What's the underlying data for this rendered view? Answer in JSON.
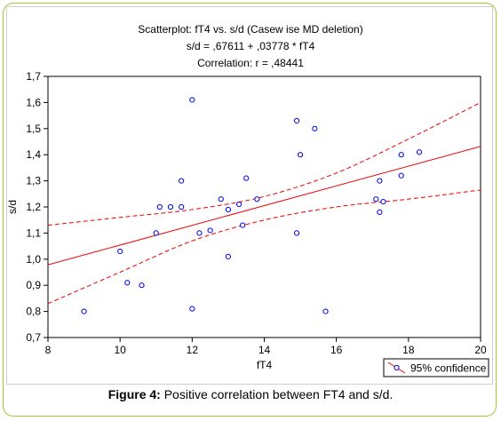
{
  "chart_data": {
    "type": "scatter",
    "title_lines": [
      "Scatterplot: fT4 vs. s/d (Casew ise MD deletion)",
      "s/d = ,67611 + ,03778 * fT4",
      "Correlation: r = ,48441"
    ],
    "xlabel": "fT4",
    "ylabel": "s/d",
    "xlim": [
      8,
      20
    ],
    "ylim": [
      0.7,
      1.7
    ],
    "x_ticks": [
      8,
      10,
      12,
      14,
      16,
      18,
      20
    ],
    "x_tick_labels": [
      "8",
      "10",
      "12",
      "14",
      "16",
      "18",
      "20"
    ],
    "y_ticks": [
      0.7,
      0.8,
      0.9,
      1.0,
      1.1,
      1.2,
      1.3,
      1.4,
      1.5,
      1.6,
      1.7
    ],
    "y_tick_labels": [
      "0,7",
      "0,8",
      "0,9",
      "1,0",
      "1,1",
      "1,2",
      "1,3",
      "1,4",
      "1,5",
      "1,6",
      "1,7"
    ],
    "grid": false,
    "legend": {
      "placement": "bottom-right",
      "label": "95% confidence"
    },
    "points": [
      {
        "x": 9.0,
        "y": 0.8
      },
      {
        "x": 10.0,
        "y": 1.03
      },
      {
        "x": 10.2,
        "y": 0.91
      },
      {
        "x": 10.6,
        "y": 0.9
      },
      {
        "x": 11.0,
        "y": 1.1
      },
      {
        "x": 11.1,
        "y": 1.2
      },
      {
        "x": 11.4,
        "y": 1.2
      },
      {
        "x": 11.7,
        "y": 1.3
      },
      {
        "x": 11.7,
        "y": 1.2
      },
      {
        "x": 12.0,
        "y": 1.61
      },
      {
        "x": 12.0,
        "y": 0.81
      },
      {
        "x": 12.2,
        "y": 1.1
      },
      {
        "x": 12.5,
        "y": 1.11
      },
      {
        "x": 12.8,
        "y": 1.23
      },
      {
        "x": 13.0,
        "y": 1.19
      },
      {
        "x": 13.0,
        "y": 1.01
      },
      {
        "x": 13.3,
        "y": 1.21
      },
      {
        "x": 13.4,
        "y": 1.13
      },
      {
        "x": 13.5,
        "y": 1.31
      },
      {
        "x": 13.8,
        "y": 1.23
      },
      {
        "x": 14.9,
        "y": 1.53
      },
      {
        "x": 14.9,
        "y": 1.1
      },
      {
        "x": 15.0,
        "y": 1.4
      },
      {
        "x": 15.4,
        "y": 1.5
      },
      {
        "x": 15.7,
        "y": 0.8
      },
      {
        "x": 17.1,
        "y": 1.23
      },
      {
        "x": 17.2,
        "y": 1.3
      },
      {
        "x": 17.2,
        "y": 1.18
      },
      {
        "x": 17.3,
        "y": 1.22
      },
      {
        "x": 17.8,
        "y": 1.4
      },
      {
        "x": 17.8,
        "y": 1.32
      },
      {
        "x": 18.3,
        "y": 1.41
      }
    ],
    "regression": {
      "intercept": 0.67611,
      "slope": 0.03778
    },
    "confidence_upper": [
      {
        "x": 8,
        "y": 1.13
      },
      {
        "x": 10,
        "y": 1.16
      },
      {
        "x": 12,
        "y": 1.19
      },
      {
        "x": 14,
        "y": 1.24
      },
      {
        "x": 16,
        "y": 1.33
      },
      {
        "x": 18,
        "y": 1.46
      },
      {
        "x": 20,
        "y": 1.6
      }
    ],
    "confidence_lower": [
      {
        "x": 8,
        "y": 0.83
      },
      {
        "x": 10,
        "y": 0.95
      },
      {
        "x": 12,
        "y": 1.07
      },
      {
        "x": 14,
        "y": 1.15
      },
      {
        "x": 16,
        "y": 1.2
      },
      {
        "x": 18,
        "y": 1.23
      },
      {
        "x": 20,
        "y": 1.265
      }
    ],
    "colors": {
      "points": "#0000ee",
      "fit_line": "#ee0000",
      "axes": "#000000",
      "frame": "#9acd32"
    }
  },
  "caption": {
    "label": "Figure 4:",
    "text": " Positive correlation between FT4 and s/d."
  }
}
